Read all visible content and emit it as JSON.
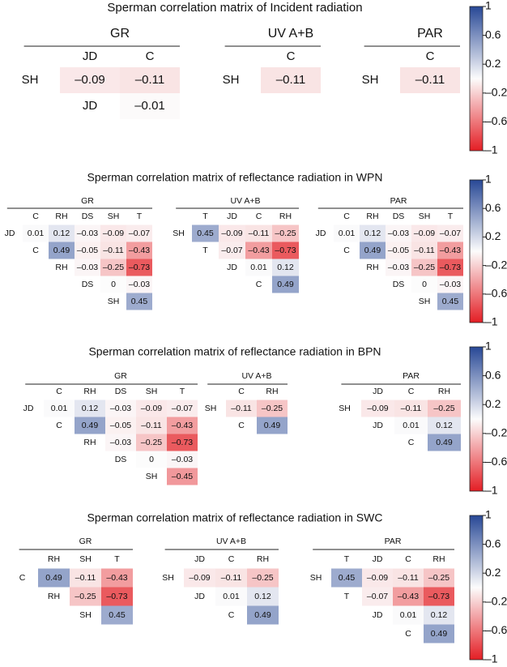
{
  "chart_data": [
    {
      "type": "heatmap",
      "title": "Sperman correlation matrix of Incident radiation",
      "clim": [
        -1,
        1
      ],
      "colorbar_ticks": [
        1,
        0.6,
        0.2,
        {
          "value": -0.2,
          "label": "–0.2"
        },
        {
          "value": -0.6,
          "label": "–0.6"
        },
        {
          "value": -1,
          "label": "–1"
        }
      ],
      "matrices": [
        {
          "name": "GR",
          "columns": [
            "JD",
            "C"
          ],
          "rows": [
            {
              "label": "SH",
              "values": [
                -0.09,
                -0.11
              ],
              "value_labels": [
                "–0.09",
                "–0.11"
              ]
            },
            {
              "label": "JD",
              "values": [
                null,
                -0.01
              ],
              "value_labels": [
                null,
                "–0.01"
              ]
            }
          ]
        },
        {
          "name": "UV A+B",
          "columns": [
            "C"
          ],
          "rows": [
            {
              "label": "SH",
              "values": [
                -0.11
              ],
              "value_labels": [
                "–0.11"
              ]
            }
          ]
        },
        {
          "name": "PAR",
          "columns": [
            "C"
          ],
          "rows": [
            {
              "label": "SH",
              "values": [
                -0.11
              ],
              "value_labels": [
                "–0.11"
              ]
            }
          ]
        }
      ]
    },
    {
      "type": "heatmap",
      "title": "Sperman correlation matrix of reflectance radiation in WPN",
      "clim": [
        -1,
        1
      ],
      "colorbar_ticks": [
        1,
        0.6,
        0.2,
        {
          "value": -0.2,
          "label": "–0.2"
        },
        {
          "value": -0.6,
          "label": "–0.6"
        },
        {
          "value": -1,
          "label": "–1"
        }
      ],
      "matrices": [
        {
          "name": "GR",
          "columns": [
            "C",
            "RH",
            "DS",
            "SH",
            "T"
          ],
          "rows": [
            {
              "label": "JD",
              "values": [
                0.01,
                0.12,
                -0.03,
                -0.09,
                -0.07
              ],
              "value_labels": [
                "0.01",
                "0.12",
                "–0.03",
                "–0.09",
                "–0.07"
              ]
            },
            {
              "label": "C",
              "values": [
                null,
                0.49,
                -0.05,
                -0.11,
                -0.43
              ],
              "value_labels": [
                null,
                "0.49",
                "–0.05",
                "–0.11",
                "–0.43"
              ]
            },
            {
              "label": "RH",
              "values": [
                null,
                null,
                -0.03,
                -0.25,
                -0.73
              ],
              "value_labels": [
                null,
                null,
                "–0.03",
                "–0.25",
                "–0.73"
              ]
            },
            {
              "label": "DS",
              "values": [
                null,
                null,
                null,
                0,
                -0.03
              ],
              "value_labels": [
                null,
                null,
                null,
                "0",
                "–0.03"
              ]
            },
            {
              "label": "SH",
              "values": [
                null,
                null,
                null,
                null,
                0.45
              ],
              "value_labels": [
                null,
                null,
                null,
                null,
                "0.45"
              ]
            }
          ]
        },
        {
          "name": "UV A+B",
          "columns": [
            "T",
            "JD",
            "C",
            "RH"
          ],
          "rows": [
            {
              "label": "SH",
              "values": [
                0.45,
                -0.09,
                -0.11,
                -0.25
              ],
              "value_labels": [
                "0.45",
                "–0.09",
                "–0.11",
                "–0.25"
              ]
            },
            {
              "label": "T",
              "values": [
                null,
                -0.07,
                -0.43,
                -0.73
              ],
              "value_labels": [
                null,
                "–0.07",
                "–0.43",
                "–0.73"
              ]
            },
            {
              "label": "JD",
              "values": [
                null,
                null,
                0.01,
                0.12
              ],
              "value_labels": [
                null,
                null,
                "0.01",
                "0.12"
              ]
            },
            {
              "label": "C",
              "values": [
                null,
                null,
                null,
                0.49
              ],
              "value_labels": [
                null,
                null,
                null,
                "0.49"
              ]
            }
          ]
        },
        {
          "name": "PAR",
          "columns": [
            "C",
            "RH",
            "DS",
            "SH",
            "T"
          ],
          "rows": [
            {
              "label": "JD",
              "values": [
                0.01,
                0.12,
                -0.03,
                -0.09,
                -0.07
              ],
              "value_labels": [
                "0.01",
                "0.12",
                "–0.03",
                "–0.09",
                "–0.07"
              ]
            },
            {
              "label": "C",
              "values": [
                null,
                0.49,
                -0.05,
                -0.11,
                -0.43
              ],
              "value_labels": [
                null,
                "0.49",
                "–0.05",
                "–0.11",
                "–0.43"
              ]
            },
            {
              "label": "RH",
              "values": [
                null,
                null,
                -0.03,
                -0.25,
                -0.73
              ],
              "value_labels": [
                null,
                null,
                "–0.03",
                "–0.25",
                "–0.73"
              ]
            },
            {
              "label": "DS",
              "values": [
                null,
                null,
                null,
                0,
                -0.03
              ],
              "value_labels": [
                null,
                null,
                null,
                "0",
                "–0.03"
              ]
            },
            {
              "label": "SH",
              "values": [
                null,
                null,
                null,
                null,
                0.45
              ],
              "value_labels": [
                null,
                null,
                null,
                null,
                "0.45"
              ]
            }
          ]
        }
      ]
    },
    {
      "type": "heatmap",
      "title": "Sperman correlation matrix of reflectance radiation in BPN",
      "clim": [
        -1,
        1
      ],
      "colorbar_ticks": [
        1,
        0.6,
        0.2,
        {
          "value": -0.2,
          "label": "–0.2"
        },
        {
          "value": -0.6,
          "label": "–0.6"
        },
        {
          "value": -1,
          "label": "–1"
        }
      ],
      "matrices": [
        {
          "name": "GR",
          "columns": [
            "C",
            "RH",
            "DS",
            "SH",
            "T"
          ],
          "rows": [
            {
              "label": "JD",
              "values": [
                0.01,
                0.12,
                -0.03,
                -0.09,
                -0.07
              ],
              "value_labels": [
                "0.01",
                "0.12",
                "–0.03",
                "–0.09",
                "–0.07"
              ]
            },
            {
              "label": "C",
              "values": [
                null,
                0.49,
                -0.05,
                -0.11,
                -0.43
              ],
              "value_labels": [
                null,
                "0.49",
                "–0.05",
                "–0.11",
                "–0.43"
              ]
            },
            {
              "label": "RH",
              "values": [
                null,
                null,
                -0.03,
                -0.25,
                -0.73
              ],
              "value_labels": [
                null,
                null,
                "–0.03",
                "–0.25",
                "–0.73"
              ]
            },
            {
              "label": "DS",
              "values": [
                null,
                null,
                null,
                0,
                -0.03
              ],
              "value_labels": [
                null,
                null,
                null,
                "0",
                "–0.03"
              ]
            },
            {
              "label": "SH",
              "values": [
                null,
                null,
                null,
                null,
                -0.45
              ],
              "value_labels": [
                null,
                null,
                null,
                null,
                "–0.45"
              ]
            }
          ]
        },
        {
          "name": "UV A+B",
          "columns": [
            "C",
            "RH"
          ],
          "rows": [
            {
              "label": "SH",
              "values": [
                -0.11,
                -0.25
              ],
              "value_labels": [
                "–0.11",
                "–0.25"
              ]
            },
            {
              "label": "C",
              "values": [
                null,
                0.49
              ],
              "value_labels": [
                null,
                "0.49"
              ]
            }
          ]
        },
        {
          "name": "PAR",
          "columns": [
            "JD",
            "C",
            "RH"
          ],
          "rows": [
            {
              "label": "SH",
              "values": [
                -0.09,
                -0.11,
                -0.25
              ],
              "value_labels": [
                "–0.09",
                "–0.11",
                "–0.25"
              ]
            },
            {
              "label": "JD",
              "values": [
                null,
                0.01,
                0.12
              ],
              "value_labels": [
                null,
                "0.01",
                "0.12"
              ]
            },
            {
              "label": "C",
              "values": [
                null,
                null,
                0.49
              ],
              "value_labels": [
                null,
                null,
                "0.49"
              ]
            }
          ]
        }
      ]
    },
    {
      "type": "heatmap",
      "title": "Sperman correlation matrix of reflectance radiation in SWC",
      "clim": [
        -1,
        1
      ],
      "colorbar_ticks": [
        1,
        0.6,
        0.2,
        {
          "value": -0.2,
          "label": "–0.2"
        },
        {
          "value": -0.6,
          "label": "–0.6"
        },
        {
          "value": -1,
          "label": "–1"
        }
      ],
      "matrices": [
        {
          "name": "GR",
          "columns": [
            "RH",
            "SH",
            "T"
          ],
          "rows": [
            {
              "label": "C",
              "values": [
                0.49,
                -0.11,
                -0.43
              ],
              "value_labels": [
                "0.49",
                "–0.11",
                "–0.43"
              ]
            },
            {
              "label": "RH",
              "values": [
                null,
                -0.25,
                -0.73
              ],
              "value_labels": [
                null,
                "–0.25",
                "–0.73"
              ]
            },
            {
              "label": "SH",
              "values": [
                null,
                null,
                0.45
              ],
              "value_labels": [
                null,
                null,
                "0.45"
              ]
            }
          ]
        },
        {
          "name": "UV A+B",
          "columns": [
            "JD",
            "C",
            "RH"
          ],
          "rows": [
            {
              "label": "SH",
              "values": [
                -0.09,
                -0.11,
                -0.25
              ],
              "value_labels": [
                "–0.09",
                "–0.11",
                "–0.25"
              ]
            },
            {
              "label": "JD",
              "values": [
                null,
                0.01,
                0.12
              ],
              "value_labels": [
                null,
                "0.01",
                "0.12"
              ]
            },
            {
              "label": "C",
              "values": [
                null,
                null,
                0.49
              ],
              "value_labels": [
                null,
                null,
                "0.49"
              ]
            }
          ]
        },
        {
          "name": "PAR",
          "columns": [
            "T",
            "JD",
            "C",
            "RH"
          ],
          "rows": [
            {
              "label": "SH",
              "values": [
                0.45,
                -0.09,
                -0.11,
                -0.25
              ],
              "value_labels": [
                "0.45",
                "–0.09",
                "–0.11",
                "–0.25"
              ]
            },
            {
              "label": "T",
              "values": [
                null,
                -0.07,
                -0.43,
                -0.73
              ],
              "value_labels": [
                null,
                "–0.07",
                "–0.43",
                "–0.73"
              ]
            },
            {
              "label": "JD",
              "values": [
                null,
                null,
                0.01,
                0.12
              ],
              "value_labels": [
                null,
                null,
                "0.01",
                "0.12"
              ]
            },
            {
              "label": "C",
              "values": [
                null,
                null,
                null,
                0.49
              ],
              "value_labels": [
                null,
                null,
                null,
                "0.49"
              ]
            }
          ]
        }
      ]
    }
  ]
}
